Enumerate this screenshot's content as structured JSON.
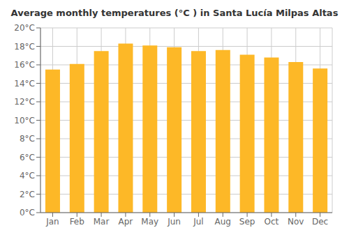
{
  "chart_data": {
    "type": "bar",
    "title": "Average monthly temperatures (°C ) in Santa Lucía Milpas Altas",
    "categories": [
      "Jan",
      "Feb",
      "Mar",
      "Apr",
      "May",
      "Jun",
      "Jul",
      "Aug",
      "Sep",
      "Oct",
      "Nov",
      "Dec"
    ],
    "values": [
      15.5,
      16.1,
      17.5,
      18.3,
      18.1,
      17.9,
      17.5,
      17.6,
      17.1,
      16.8,
      16.3,
      15.6
    ],
    "color": "#FDB827",
    "ylim": [
      0,
      20
    ],
    "yticks": [
      {
        "value": 0,
        "label": "0°C"
      },
      {
        "value": 2,
        "label": "2°C"
      },
      {
        "value": 4,
        "label": "4°C"
      },
      {
        "value": 6,
        "label": "6°C"
      },
      {
        "value": 8,
        "label": "8°C"
      },
      {
        "value": 10,
        "label": "10°C"
      },
      {
        "value": 12,
        "label": "12°C"
      },
      {
        "value": 14,
        "label": "14°C"
      },
      {
        "value": 16,
        "label": "16°C"
      },
      {
        "value": 18,
        "label": "18°C"
      },
      {
        "value": 20,
        "label": "20°C"
      }
    ],
    "grid": true
  }
}
